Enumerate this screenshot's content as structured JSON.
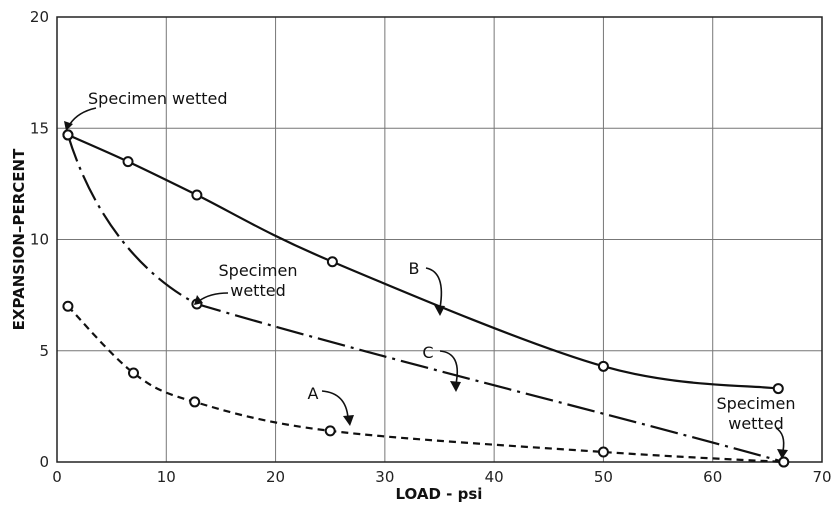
{
  "chart_data": {
    "type": "line",
    "xlabel": "LOAD - psi",
    "ylabel": "EXPANSION–PERCENT",
    "xlim": [
      0,
      70
    ],
    "ylim": [
      0,
      20
    ],
    "xticks": [
      0,
      10,
      20,
      30,
      40,
      50,
      60,
      70
    ],
    "yticks": [
      0,
      5,
      10,
      15,
      20
    ],
    "grid": true,
    "series": [
      {
        "name": "B",
        "style": "solid",
        "x": [
          1,
          6.5,
          12.8,
          25.2,
          50,
          66
        ],
        "y": [
          14.7,
          13.5,
          12.0,
          9.0,
          4.3,
          3.3
        ]
      },
      {
        "name": "C",
        "style": "dash-dot",
        "x": [
          1,
          12.8,
          66.5
        ],
        "y": [
          14.7,
          7.1,
          0.0
        ]
      },
      {
        "name": "A",
        "style": "dashed",
        "x": [
          1,
          7,
          12.6,
          25,
          50,
          66.5
        ],
        "y": [
          7.0,
          4.0,
          2.7,
          1.4,
          0.45,
          0.0
        ]
      }
    ],
    "annotations": [
      {
        "text": "Specimen wetted",
        "lines": [
          "Specimen wetted"
        ]
      },
      {
        "text": "Specimen wetted",
        "lines": [
          "Specimen",
          "wetted"
        ]
      },
      {
        "text": "Specimen wetted",
        "lines": [
          "Specimen",
          "wetted"
        ]
      },
      {
        "text": "B",
        "lines": [
          "B"
        ]
      },
      {
        "text": "C",
        "lines": [
          "C"
        ]
      },
      {
        "text": "A",
        "lines": [
          "A"
        ]
      }
    ]
  }
}
